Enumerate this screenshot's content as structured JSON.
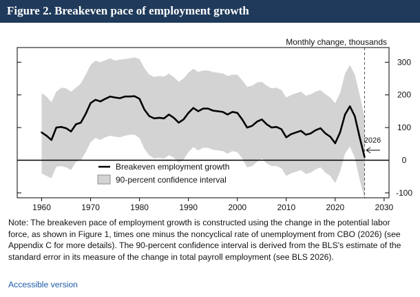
{
  "header": {
    "title": "Figure 2. Breakeven pace of employment growth"
  },
  "chart_data": {
    "type": "line",
    "title": "Figure 2. Breakeven pace of employment growth",
    "ylabel": "Monthly change, thousands",
    "xlim": [
      1955,
      2031
    ],
    "ylim": [
      -115,
      345
    ],
    "x_ticks": [
      1960,
      1970,
      1980,
      1990,
      2000,
      2010,
      2020,
      2030
    ],
    "y_ticks": [
      -100,
      0,
      100,
      200,
      300
    ],
    "y_tick_labels": [
      "-100",
      "0",
      "100",
      "200",
      "300"
    ],
    "hline_y": 0,
    "vline_x": 2026,
    "annotation": {
      "text": "2026",
      "x": 2026,
      "y": 5
    },
    "legend": {
      "placement": "center-left",
      "line_label": "Breakeven employment growth",
      "band_label": "90-percent confidence interval"
    },
    "series": [
      {
        "name": "Breakeven employment growth",
        "x": [
          1960,
          1961,
          1962,
          1963,
          1964,
          1965,
          1966,
          1967,
          1968,
          1969,
          1970,
          1971,
          1972,
          1973,
          1974,
          1975,
          1976,
          1977,
          1978,
          1979,
          1980,
          1981,
          1982,
          1983,
          1984,
          1985,
          1986,
          1987,
          1988,
          1989,
          1990,
          1991,
          1992,
          1993,
          1994,
          1995,
          1996,
          1997,
          1998,
          1999,
          2000,
          2001,
          2002,
          2003,
          2004,
          2005,
          2006,
          2007,
          2008,
          2009,
          2010,
          2011,
          2012,
          2013,
          2014,
          2015,
          2016,
          2017,
          2018,
          2019,
          2020,
          2021,
          2022,
          2023,
          2024,
          2025,
          2026
        ],
        "values": [
          85,
          75,
          62,
          100,
          102,
          98,
          88,
          110,
          115,
          142,
          175,
          185,
          180,
          188,
          195,
          192,
          190,
          195,
          195,
          196,
          188,
          155,
          135,
          128,
          130,
          128,
          140,
          130,
          115,
          125,
          145,
          160,
          150,
          158,
          158,
          152,
          150,
          148,
          140,
          148,
          145,
          125,
          100,
          105,
          118,
          125,
          110,
          100,
          102,
          95,
          70,
          80,
          85,
          90,
          78,
          82,
          92,
          98,
          82,
          72,
          52,
          85,
          140,
          165,
          135,
          70,
          10
        ]
      },
      {
        "name": "90-percent confidence interval (upper)",
        "x": [
          1960,
          1961,
          1962,
          1963,
          1964,
          1965,
          1966,
          1967,
          1968,
          1969,
          1970,
          1971,
          1972,
          1973,
          1974,
          1975,
          1976,
          1977,
          1978,
          1979,
          1980,
          1981,
          1982,
          1983,
          1984,
          1985,
          1986,
          1987,
          1988,
          1989,
          1990,
          1991,
          1992,
          1993,
          1994,
          1995,
          1996,
          1997,
          1998,
          1999,
          2000,
          2001,
          2002,
          2003,
          2004,
          2005,
          2006,
          2007,
          2008,
          2009,
          2010,
          2011,
          2012,
          2013,
          2014,
          2015,
          2016,
          2017,
          2018,
          2019,
          2020,
          2021,
          2022,
          2023,
          2024,
          2025,
          2026
        ],
        "values": [
          205,
          195,
          178,
          210,
          222,
          220,
          210,
          222,
          235,
          262,
          292,
          305,
          300,
          306,
          312,
          305,
          308,
          310,
          312,
          315,
          310,
          282,
          262,
          255,
          258,
          256,
          265,
          255,
          240,
          250,
          268,
          280,
          270,
          275,
          275,
          270,
          268,
          266,
          258,
          262,
          262,
          245,
          225,
          228,
          238,
          240,
          228,
          220,
          222,
          215,
          192,
          200,
          205,
          210,
          198,
          202,
          210,
          215,
          202,
          192,
          175,
          205,
          265,
          292,
          262,
          200,
          130
        ]
      },
      {
        "name": "90-percent confidence interval (lower)",
        "x": [
          1960,
          1961,
          1962,
          1963,
          1964,
          1965,
          1966,
          1967,
          1968,
          1969,
          1970,
          1971,
          1972,
          1973,
          1974,
          1975,
          1976,
          1977,
          1978,
          1979,
          1980,
          1981,
          1982,
          1983,
          1984,
          1985,
          1986,
          1987,
          1988,
          1989,
          1990,
          1991,
          1992,
          1993,
          1994,
          1995,
          1996,
          1997,
          1998,
          1999,
          2000,
          2001,
          2002,
          2003,
          2004,
          2005,
          2006,
          2007,
          2008,
          2009,
          2010,
          2011,
          2012,
          2013,
          2014,
          2015,
          2016,
          2017,
          2018,
          2019,
          2020,
          2021,
          2022,
          2023,
          2024,
          2025,
          2026
        ],
        "values": [
          -40,
          -48,
          -55,
          -20,
          -18,
          -22,
          -30,
          -5,
          0,
          25,
          55,
          68,
          62,
          70,
          75,
          72,
          70,
          75,
          78,
          78,
          68,
          35,
          15,
          5,
          8,
          5,
          15,
          8,
          -8,
          2,
          25,
          40,
          30,
          38,
          38,
          32,
          30,
          28,
          20,
          28,
          25,
          5,
          -22,
          -18,
          -5,
          5,
          -10,
          -18,
          -18,
          -25,
          -48,
          -40,
          -35,
          -30,
          -42,
          -38,
          -28,
          -22,
          -38,
          -48,
          -70,
          -35,
          20,
          42,
          8,
          -60,
          -118
        ]
      }
    ]
  },
  "note": "Note: The breakeven pace of employment growth is constructed using the change in the potential labor force, as shown in Figure 1, times one minus the noncyclical rate of unemployment from CBO (2026) (see Appendix C for more details). The 90-percent confidence interval is derived from the BLS's estimate of the standard error in its measure of the change in total payroll employment (see BLS 2026).",
  "link": {
    "label": "Accessible version"
  },
  "colors": {
    "title_bg": "#1f3a5a",
    "band": "#d3d3d3",
    "line": "#000000",
    "link": "#1e5aa8"
  }
}
